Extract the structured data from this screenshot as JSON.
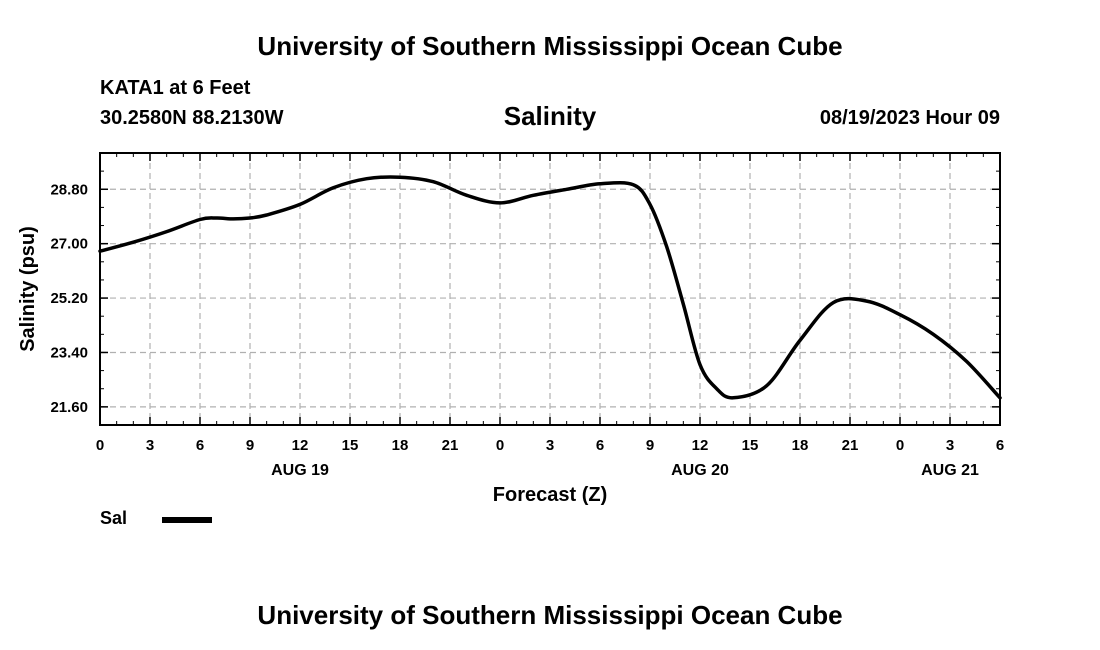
{
  "header": {
    "title": "University of Southern Mississippi Ocean Cube",
    "station": "KATA1 at 6 Feet",
    "location": "30.2580N  88.2130W",
    "chart_title": "Salinity",
    "datetime": "08/19/2023 Hour 09"
  },
  "footer": {
    "title": "University of Southern Mississippi Ocean Cube"
  },
  "legend": {
    "label": "Sal",
    "color": "#000000"
  },
  "chart_data": {
    "type": "line",
    "title": "Salinity",
    "xlabel": "Forecast (Z)",
    "ylabel": "Salinity (psu)",
    "x_tick_labels": [
      "0",
      "3",
      "6",
      "9",
      "12",
      "15",
      "18",
      "21",
      "0",
      "3",
      "6",
      "9",
      "12",
      "15",
      "18",
      "21",
      "0",
      "3",
      "6"
    ],
    "date_labels": [
      {
        "label": "AUG 19",
        "hour_index": 12
      },
      {
        "label": "AUG 20",
        "hour_index": 36
      },
      {
        "label": "AUG 21",
        "hour_index": 51
      }
    ],
    "xlim_hours": [
      0,
      54
    ],
    "y_ticks": [
      "21.60",
      "23.40",
      "25.20",
      "27.00",
      "28.80"
    ],
    "ylim": [
      21.0,
      30.0
    ],
    "grid": true,
    "series": [
      {
        "name": "Sal",
        "x_hours": [
          0,
          2,
          4,
          6,
          7,
          8,
          9,
          10,
          12,
          14,
          16,
          18,
          20,
          22,
          24,
          26,
          28,
          30,
          32,
          33,
          34,
          35,
          36,
          37,
          38,
          40,
          42,
          44,
          46,
          48,
          50,
          52,
          54
        ],
        "values": [
          26.75,
          27.05,
          27.4,
          27.8,
          27.85,
          27.82,
          27.85,
          27.95,
          28.3,
          28.85,
          29.15,
          29.2,
          29.05,
          28.6,
          28.35,
          28.6,
          28.8,
          28.98,
          28.95,
          28.3,
          26.9,
          25.0,
          23.0,
          22.2,
          21.9,
          22.3,
          23.8,
          25.05,
          25.1,
          24.65,
          24.0,
          23.1,
          21.9
        ]
      }
    ]
  }
}
